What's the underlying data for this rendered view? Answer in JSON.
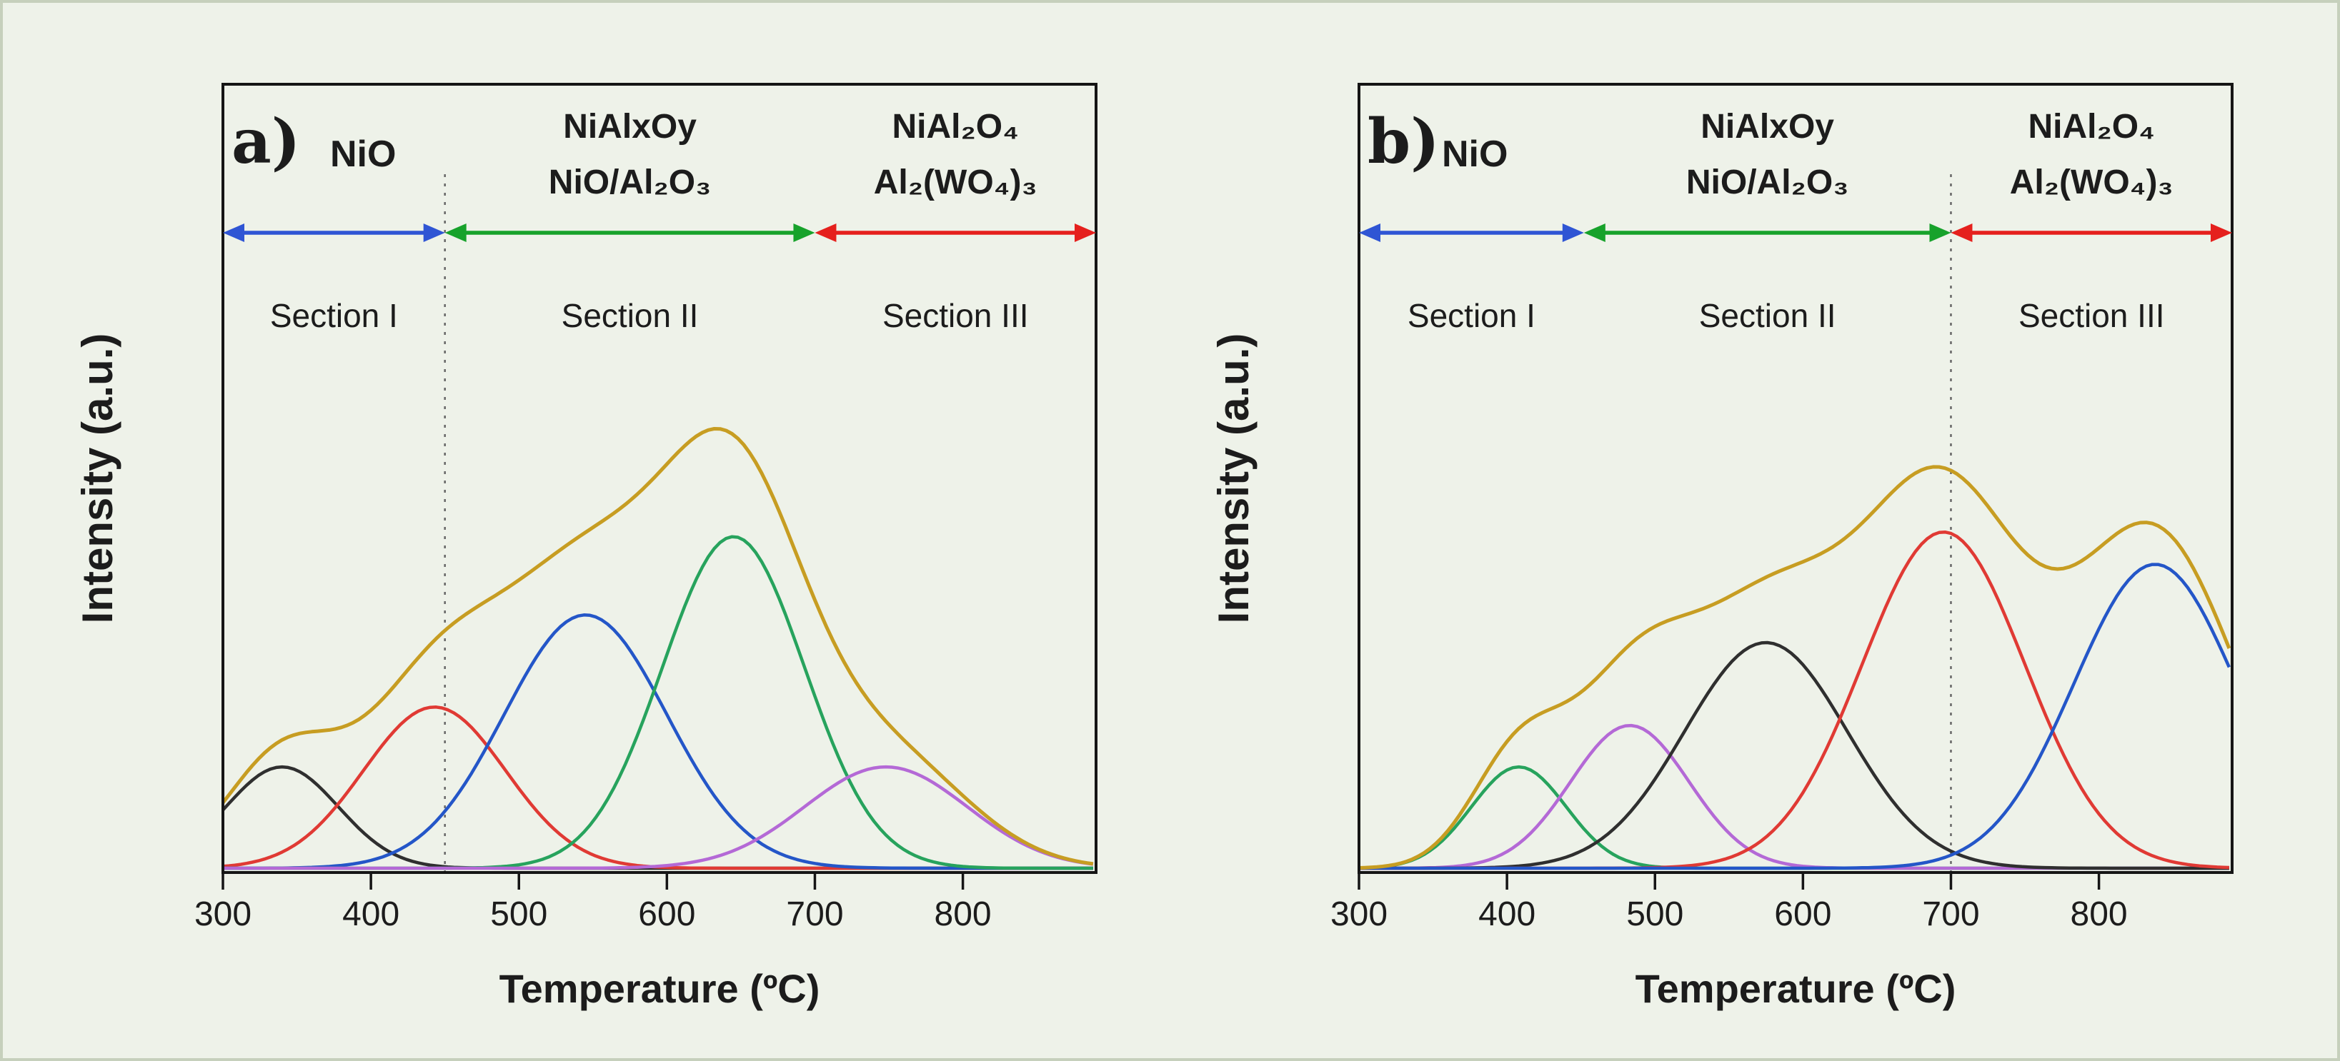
{
  "figure": {
    "background": "#eef2e9",
    "border_color": "#c6d0bc",
    "axis_color": "#151515",
    "divider_color": "#666666"
  },
  "chart_data": [
    {
      "panel_label": "a)",
      "type": "line",
      "title": "",
      "xlabel": "Temperature (ºC)",
      "ylabel": "Intensity (a.u.)",
      "xlim": [
        300,
        890
      ],
      "x_ticks": [
        300,
        400,
        500,
        600,
        700,
        800
      ],
      "y_ticks": [],
      "grid": false,
      "legend": "none",
      "divider_temp": 450,
      "sections": [
        {
          "label": "Section I",
          "from": 300,
          "to": 450,
          "arrow_color": "#2f55d4",
          "species_lines": [
            "NiO"
          ]
        },
        {
          "label": "Section II",
          "from": 450,
          "to": 700,
          "arrow_color": "#17a22b",
          "species_lines": [
            "NiAlxOy",
            "NiO/Al₂O₃"
          ]
        },
        {
          "label": "Section III",
          "from": 700,
          "to": 890,
          "arrow_color": "#e5201d",
          "species_lines": [
            "NiAl₂O₄",
            "Al₂(WO₄)₃"
          ]
        }
      ],
      "components": [
        {
          "name": "deconvoluted-peak-1",
          "color": "#2f2f2f",
          "center": 340,
          "sigma": 38,
          "amplitude": 0.22
        },
        {
          "name": "deconvoluted-peak-2",
          "color": "#e03a34",
          "center": 443,
          "sigma": 48,
          "amplitude": 0.35
        },
        {
          "name": "deconvoluted-peak-3",
          "color": "#2456c8",
          "center": 545,
          "sigma": 55,
          "amplitude": 0.55
        },
        {
          "name": "deconvoluted-peak-4",
          "color": "#27a35d",
          "center": 645,
          "sigma": 48,
          "amplitude": 0.72
        },
        {
          "name": "deconvoluted-peak-5",
          "color": "#b469d6",
          "center": 748,
          "sigma": 55,
          "amplitude": 0.22
        }
      ],
      "envelope": {
        "name": "sum-envelope",
        "color": "#c79d22",
        "scale": 1.09
      }
    },
    {
      "panel_label": "b)",
      "type": "line",
      "title": "",
      "xlabel": "Temperature (ºC)",
      "ylabel": "Intensity (a.u.)",
      "xlim": [
        300,
        890
      ],
      "x_ticks": [
        300,
        400,
        500,
        600,
        700,
        800
      ],
      "y_ticks": [],
      "grid": false,
      "legend": "none",
      "divider_temp": 700,
      "sections": [
        {
          "label": "Section I",
          "from": 300,
          "to": 452,
          "arrow_color": "#2f55d4",
          "species_lines": [
            "NiO"
          ]
        },
        {
          "label": "Section II",
          "from": 452,
          "to": 700,
          "arrow_color": "#17a22b",
          "species_lines": [
            "NiAlxOy",
            "NiO/Al₂O₃"
          ]
        },
        {
          "label": "Section III",
          "from": 700,
          "to": 890,
          "arrow_color": "#e5201d",
          "species_lines": [
            "NiAl₂O₄",
            "Al₂(WO₄)₃"
          ]
        }
      ],
      "components": [
        {
          "name": "deconvoluted-peak-1",
          "color": "#27a35d",
          "center": 408,
          "sigma": 32,
          "amplitude": 0.22
        },
        {
          "name": "deconvoluted-peak-2",
          "color": "#b469d6",
          "center": 483,
          "sigma": 40,
          "amplitude": 0.31
        },
        {
          "name": "deconvoluted-peak-3",
          "color": "#2f2f2f",
          "center": 575,
          "sigma": 55,
          "amplitude": 0.49
        },
        {
          "name": "deconvoluted-peak-4",
          "color": "#e03a34",
          "center": 695,
          "sigma": 55,
          "amplitude": 0.73
        },
        {
          "name": "deconvoluted-peak-5",
          "color": "#2456c8",
          "center": 838,
          "sigma": 55,
          "amplitude": 0.66
        }
      ],
      "envelope": {
        "name": "sum-envelope",
        "color": "#c79d22",
        "scale": 1.09
      }
    }
  ]
}
